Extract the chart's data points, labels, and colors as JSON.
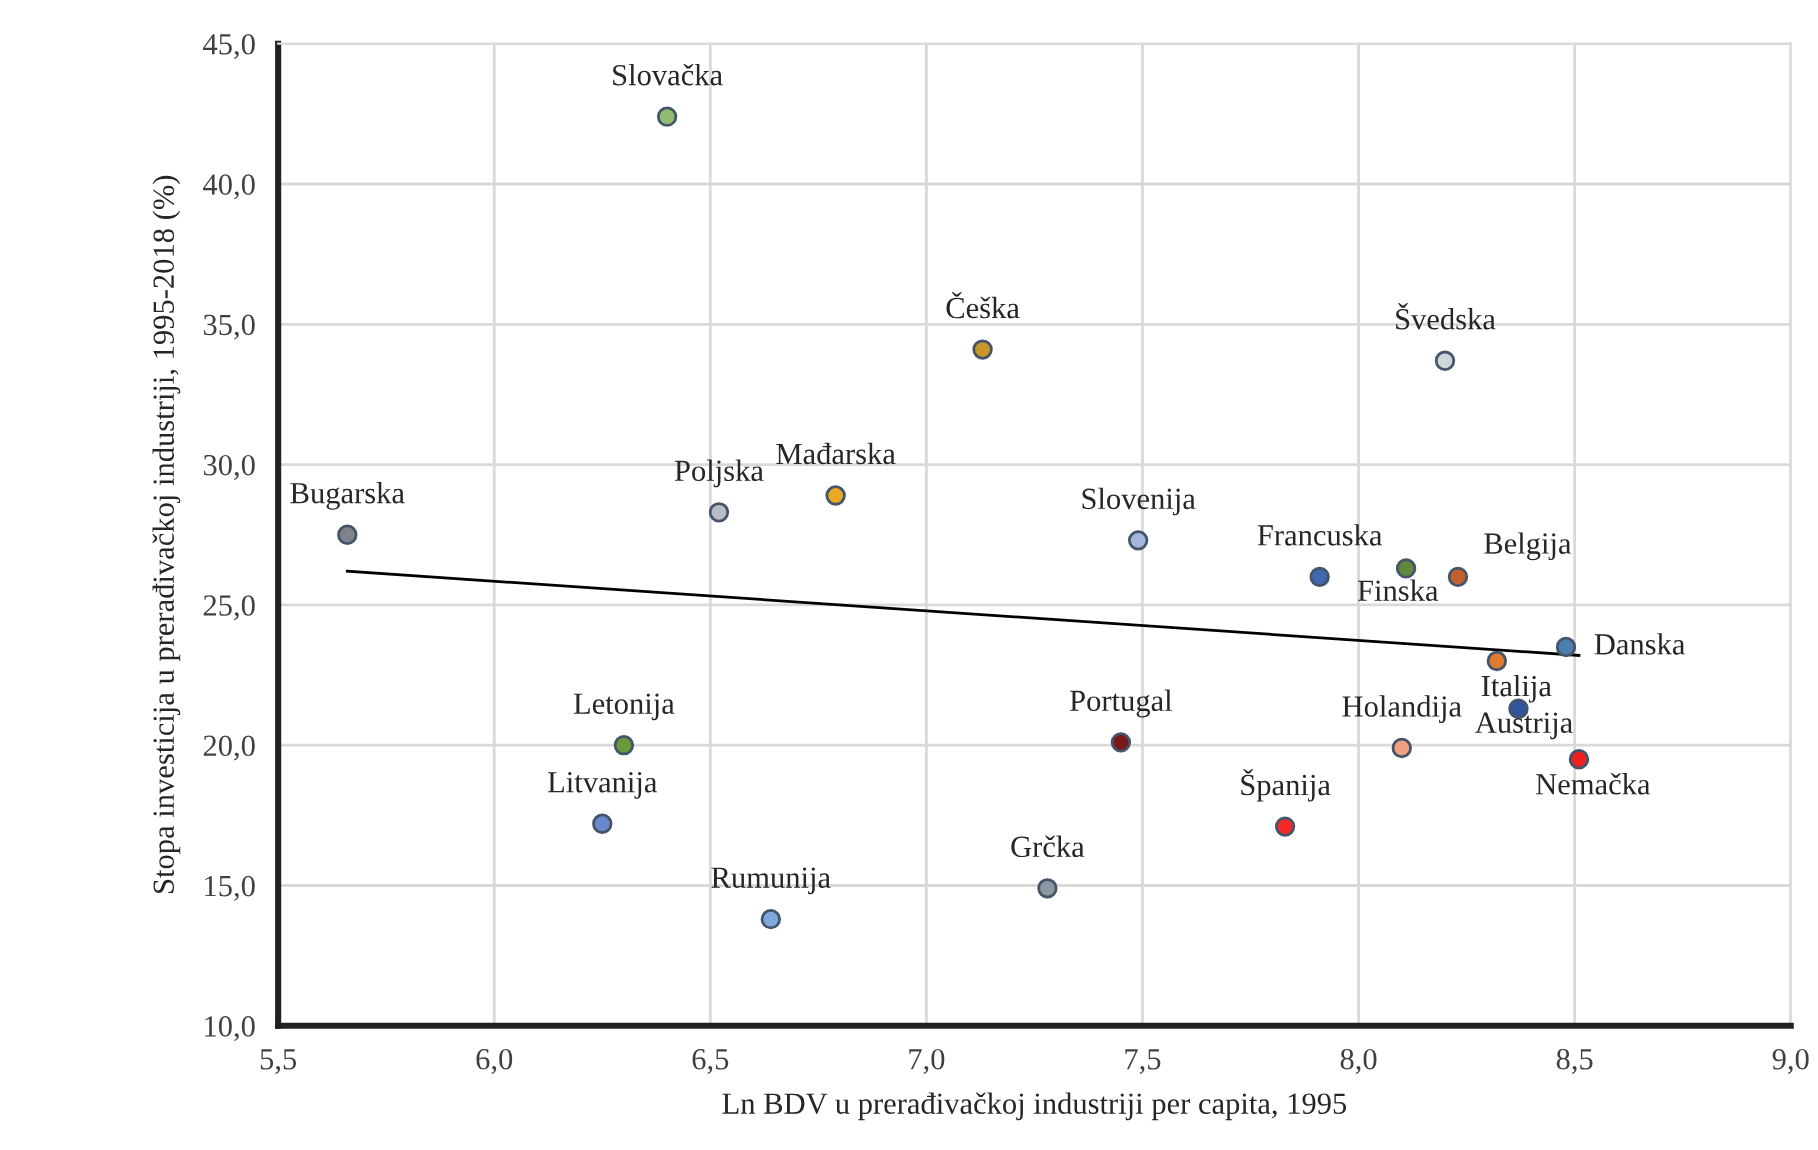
{
  "chart_data": {
    "type": "scatter",
    "xlabel": "Ln BDV u prerađivačkoj industriji per capita, 1995",
    "ylabel": "Stopa investicija u prerađivačkoj industriji, 1995-2018 (%)",
    "xlim": [
      5.5,
      9.0
    ],
    "ylim": [
      10,
      45
    ],
    "xticks": [
      {
        "value": 5.5,
        "label": "5,5"
      },
      {
        "value": 6.0,
        "label": "6,0"
      },
      {
        "value": 6.5,
        "label": "6,5"
      },
      {
        "value": 7.0,
        "label": "7,0"
      },
      {
        "value": 7.5,
        "label": "7,5"
      },
      {
        "value": 8.0,
        "label": "8,0"
      },
      {
        "value": 8.5,
        "label": "8,5"
      },
      {
        "value": 9.0,
        "label": "9,0"
      }
    ],
    "yticks": [
      {
        "value": 10,
        "label": "10,0"
      },
      {
        "value": 15,
        "label": "15,0"
      },
      {
        "value": 20,
        "label": "20,0"
      },
      {
        "value": 25,
        "label": "25,0"
      },
      {
        "value": 30,
        "label": "30,0"
      },
      {
        "value": 35,
        "label": "35,0"
      },
      {
        "value": 40,
        "label": "40,0"
      },
      {
        "value": 45,
        "label": "45,0"
      }
    ],
    "grid": true,
    "marker": "circle",
    "series": [
      {
        "name": "Slovačka",
        "color": "#8fbc6f",
        "x": [
          6.4
        ],
        "values": [
          42.4
        ]
      },
      {
        "name": "Poljska",
        "color": "#b8bcc4",
        "x": [
          6.52
        ],
        "values": [
          28.3
        ]
      },
      {
        "name": "Mađarska",
        "color": "#e8a925",
        "x": [
          6.79
        ],
        "values": [
          28.9
        ]
      },
      {
        "name": "Bugarska",
        "color": "#7f8289",
        "x": [
          5.66
        ],
        "values": [
          27.5
        ]
      },
      {
        "name": "Češka",
        "color": "#c9962a",
        "x": [
          7.13
        ],
        "values": [
          34.1
        ]
      },
      {
        "name": "Švedska",
        "color": "#d0d3d8",
        "x": [
          8.2
        ],
        "values": [
          33.7
        ]
      },
      {
        "name": "Slovenija",
        "color": "#a4b6dc",
        "x": [
          7.49
        ],
        "values": [
          27.3
        ]
      },
      {
        "name": "Francuska",
        "color": "#4169b0",
        "x": [
          7.91
        ],
        "values": [
          26.0
        ]
      },
      {
        "name": "Finska",
        "color": "#5f8a3e",
        "x": [
          8.11
        ],
        "values": [
          26.3
        ]
      },
      {
        "name": "Belgija",
        "color": "#c0622c",
        "x": [
          8.23
        ],
        "values": [
          26.0
        ]
      },
      {
        "name": "Danska",
        "color": "#4a7fb0",
        "x": [
          8.48
        ],
        "values": [
          23.5
        ]
      },
      {
        "name": "Italija",
        "color": "#e07a30",
        "x": [
          8.32
        ],
        "values": [
          23.0
        ]
      },
      {
        "name": "Austrija",
        "color": "#2f55a0",
        "x": [
          8.37
        ],
        "values": [
          21.3
        ]
      },
      {
        "name": "Nemačka",
        "color": "#f02020",
        "x": [
          8.51
        ],
        "values": [
          19.5
        ]
      },
      {
        "name": "Holandija",
        "color": "#f0a080",
        "x": [
          8.1
        ],
        "values": [
          19.9
        ]
      },
      {
        "name": "Portugal",
        "color": "#7a1818",
        "x": [
          7.45
        ],
        "values": [
          20.1
        ]
      },
      {
        "name": "Španija",
        "color": "#f02828",
        "x": [
          7.83
        ],
        "values": [
          17.1
        ]
      },
      {
        "name": "Grčka",
        "color": "#8f96a0",
        "x": [
          7.28
        ],
        "values": [
          14.9
        ]
      },
      {
        "name": "Letonija",
        "color": "#6a9a3a",
        "x": [
          6.3
        ],
        "values": [
          20.0
        ]
      },
      {
        "name": "Litvanija",
        "color": "#6a88cc",
        "x": [
          6.25
        ],
        "values": [
          17.2
        ]
      },
      {
        "name": "Rumunija",
        "color": "#7fa8dc",
        "x": [
          6.64
        ],
        "values": [
          13.8
        ]
      },
      {
        "type": "line",
        "marker": "none",
        "color": "#000000",
        "x": [
          5.66,
          8.51
        ],
        "values": [
          26.2,
          23.2
        ]
      }
    ]
  }
}
